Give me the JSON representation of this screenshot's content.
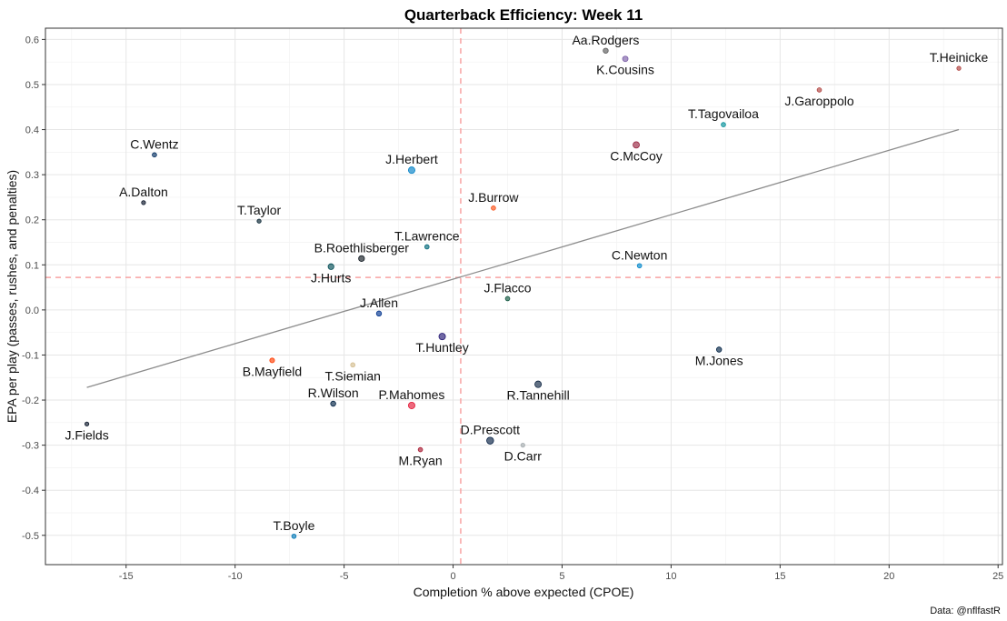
{
  "chart_data": {
    "type": "scatter",
    "title": "Quarterback Efficiency: Week 11",
    "xlabel": "Completion % above expected (CPOE)",
    "ylabel": "EPA per play (passes, rushes, and penalties)",
    "caption": "Data: @nflfastR",
    "xlim": [
      -18.7,
      25.2
    ],
    "ylim": [
      -0.565,
      0.625
    ],
    "x_ticks": [
      -15,
      -10,
      -5,
      0,
      5,
      10,
      15,
      20,
      25
    ],
    "x_tick_labels": [
      "-15",
      "-10",
      "-5",
      "0",
      "5",
      "10",
      "15",
      "20",
      "25"
    ],
    "y_ticks": [
      0.6,
      0.5,
      0.4,
      0.3,
      0.2,
      0.1,
      0.0,
      -0.1,
      -0.2,
      -0.3,
      -0.4,
      -0.5
    ],
    "y_tick_labels": [
      "0.6",
      "0.5",
      "0.4",
      "0.3",
      "0.2",
      "0.1",
      "0.0",
      "-0.1",
      "-0.2",
      "-0.3",
      "-0.4",
      "-0.5"
    ],
    "grid": true,
    "reference_lines": {
      "vertical_x": 0.35,
      "horizontal_y": 0.072,
      "color": "#f8a3a3"
    },
    "trend_line": {
      "x1": -16.8,
      "y1": -0.172,
      "x2": 23.2,
      "y2": 0.4,
      "color": "#8c8c8c"
    },
    "points": [
      {
        "name": "Aa.Rodgers",
        "x": 7.0,
        "y": 0.575,
        "size": 2.8,
        "color": "#5a5a5a",
        "label_pos": "above"
      },
      {
        "name": "K.Cousins",
        "x": 7.9,
        "y": 0.557,
        "size": 3.0,
        "color": "#7b5ea7",
        "label_pos": "below"
      },
      {
        "name": "T.Heinicke",
        "x": 23.2,
        "y": 0.536,
        "size": 2.2,
        "color": "#b0413e",
        "label_pos": "above"
      },
      {
        "name": "J.Garoppolo",
        "x": 16.8,
        "y": 0.488,
        "size": 2.4,
        "color": "#b0413e",
        "label_pos": "below"
      },
      {
        "name": "T.Tagovailoa",
        "x": 12.4,
        "y": 0.411,
        "size": 2.4,
        "color": "#008e97",
        "label_pos": "above"
      },
      {
        "name": "C.McCoy",
        "x": 8.4,
        "y": 0.366,
        "size": 3.5,
        "color": "#97233f",
        "label_pos": "below"
      },
      {
        "name": "C.Wentz",
        "x": -13.7,
        "y": 0.344,
        "size": 2.4,
        "color": "#002c5f",
        "label_pos": "above"
      },
      {
        "name": "J.Herbert",
        "x": -1.9,
        "y": 0.31,
        "size": 3.6,
        "color": "#0080c6",
        "label_pos": "above"
      },
      {
        "name": "A.Dalton",
        "x": -14.2,
        "y": 0.238,
        "size": 2.2,
        "color": "#0b162a",
        "label_pos": "above"
      },
      {
        "name": "J.Burrow",
        "x": 1.85,
        "y": 0.226,
        "size": 2.4,
        "color": "#fb4f14",
        "label_pos": "above"
      },
      {
        "name": "T.Taylor",
        "x": -8.9,
        "y": 0.197,
        "size": 2.2,
        "color": "#03202f",
        "label_pos": "above"
      },
      {
        "name": "T.Lawrence",
        "x": -1.2,
        "y": 0.14,
        "size": 2.4,
        "color": "#006778",
        "label_pos": "above"
      },
      {
        "name": "B.Roethlisberger",
        "x": -4.2,
        "y": 0.114,
        "size": 3.2,
        "color": "#101820",
        "label_pos": "above"
      },
      {
        "name": "C.Newton",
        "x": 8.55,
        "y": 0.098,
        "size": 2.4,
        "color": "#0085ca",
        "label_pos": "above"
      },
      {
        "name": "J.Hurts",
        "x": -5.6,
        "y": 0.096,
        "size": 3.2,
        "color": "#004c54",
        "label_pos": "below"
      },
      {
        "name": "J.Flacco",
        "x": 2.5,
        "y": 0.025,
        "size": 2.4,
        "color": "#125740",
        "label_pos": "above"
      },
      {
        "name": "J.Allen",
        "x": -3.4,
        "y": -0.008,
        "size": 2.8,
        "color": "#00338d",
        "label_pos": "above"
      },
      {
        "name": "T.Huntley",
        "x": -0.5,
        "y": -0.059,
        "size": 3.6,
        "color": "#241773",
        "label_pos": "below"
      },
      {
        "name": "M.Jones",
        "x": 12.2,
        "y": -0.088,
        "size": 2.8,
        "color": "#002244",
        "label_pos": "below"
      },
      {
        "name": "B.Mayfield",
        "x": -8.3,
        "y": -0.112,
        "size": 2.6,
        "color": "#ff3c00",
        "label_pos": "below"
      },
      {
        "name": "T.Siemian",
        "x": -4.6,
        "y": -0.122,
        "size": 2.4,
        "color": "#d3bc8d",
        "label_pos": "below"
      },
      {
        "name": "R.Tannehill",
        "x": 3.9,
        "y": -0.165,
        "size": 3.6,
        "color": "#0c2340",
        "label_pos": "below"
      },
      {
        "name": "R.Wilson",
        "x": -5.5,
        "y": -0.208,
        "size": 2.8,
        "color": "#002244",
        "label_pos": "above"
      },
      {
        "name": "P.Mahomes",
        "x": -1.9,
        "y": -0.212,
        "size": 3.6,
        "color": "#e31837",
        "label_pos": "above"
      },
      {
        "name": "J.Fields",
        "x": -16.8,
        "y": -0.253,
        "size": 2.2,
        "color": "#0b162a",
        "label_pos": "below"
      },
      {
        "name": "D.Prescott",
        "x": 1.7,
        "y": -0.29,
        "size": 3.8,
        "color": "#041e42",
        "label_pos": "above"
      },
      {
        "name": "D.Carr",
        "x": 3.2,
        "y": -0.3,
        "size": 2.2,
        "color": "#a5acaf",
        "label_pos": "below"
      },
      {
        "name": "M.Ryan",
        "x": -1.5,
        "y": -0.31,
        "size": 2.4,
        "color": "#a71930",
        "label_pos": "below"
      },
      {
        "name": "T.Boyle",
        "x": -7.3,
        "y": -0.502,
        "size": 2.4,
        "color": "#0076b6",
        "label_pos": "above"
      }
    ]
  }
}
